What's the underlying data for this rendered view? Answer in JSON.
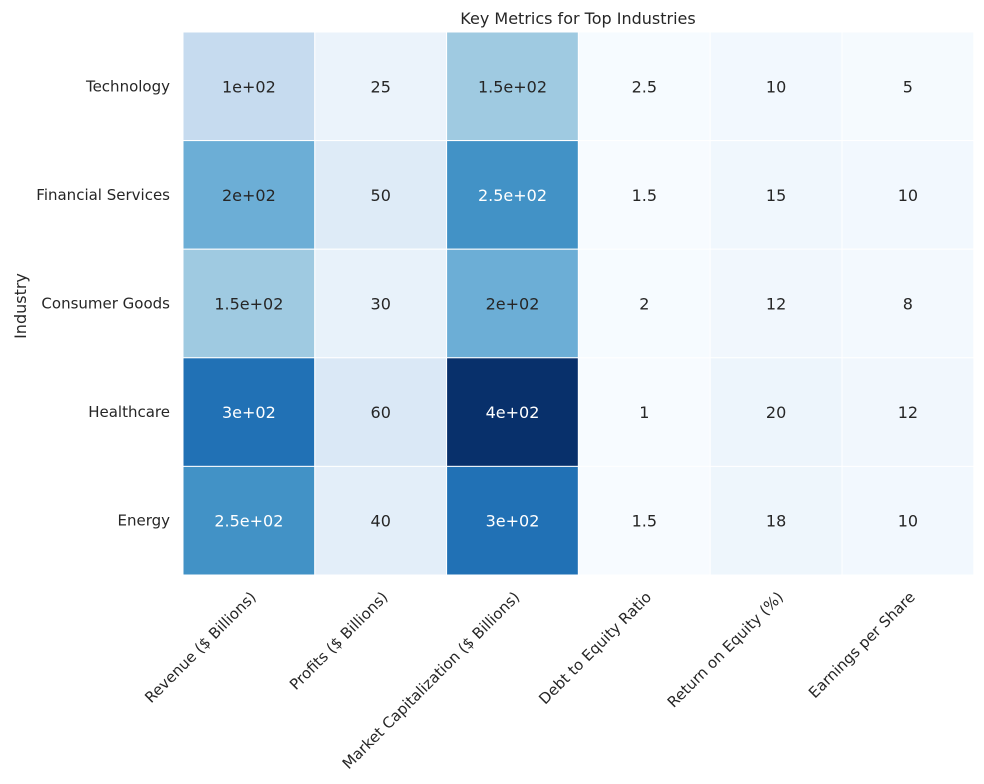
{
  "chart_data": {
    "type": "heatmap",
    "title": "Key Metrics for Top Industries",
    "xlabel": "",
    "ylabel": "Industry",
    "rows": [
      "Technology",
      "Financial Services",
      "Consumer Goods",
      "Healthcare",
      "Energy"
    ],
    "columns": [
      "Revenue ($ Billions)",
      "Profits ($ Billions)",
      "Market Capitalization ($ Billions)",
      "Debt to Equity Ratio",
      "Return on Equity (%)",
      "Earnings per Share"
    ],
    "values": [
      [
        100,
        25,
        150,
        2.5,
        10,
        5
      ],
      [
        200,
        50,
        250,
        1.5,
        15,
        10
      ],
      [
        150,
        30,
        200,
        2,
        12,
        8
      ],
      [
        300,
        60,
        400,
        1,
        20,
        12
      ],
      [
        250,
        40,
        300,
        1.5,
        18,
        10
      ]
    ],
    "cell_labels": [
      [
        "1e+02",
        "25",
        "1.5e+02",
        "2.5",
        "10",
        "5"
      ],
      [
        "2e+02",
        "50",
        "2.5e+02",
        "1.5",
        "15",
        "10"
      ],
      [
        "1.5e+02",
        "30",
        "2e+02",
        "2",
        "12",
        "8"
      ],
      [
        "3e+02",
        "60",
        "4e+02",
        "1",
        "20",
        "12"
      ],
      [
        "2.5e+02",
        "40",
        "3e+02",
        "1.5",
        "18",
        "10"
      ]
    ],
    "colormap": "Blues",
    "color_range": [
      1,
      400
    ],
    "colorbar": false
  }
}
